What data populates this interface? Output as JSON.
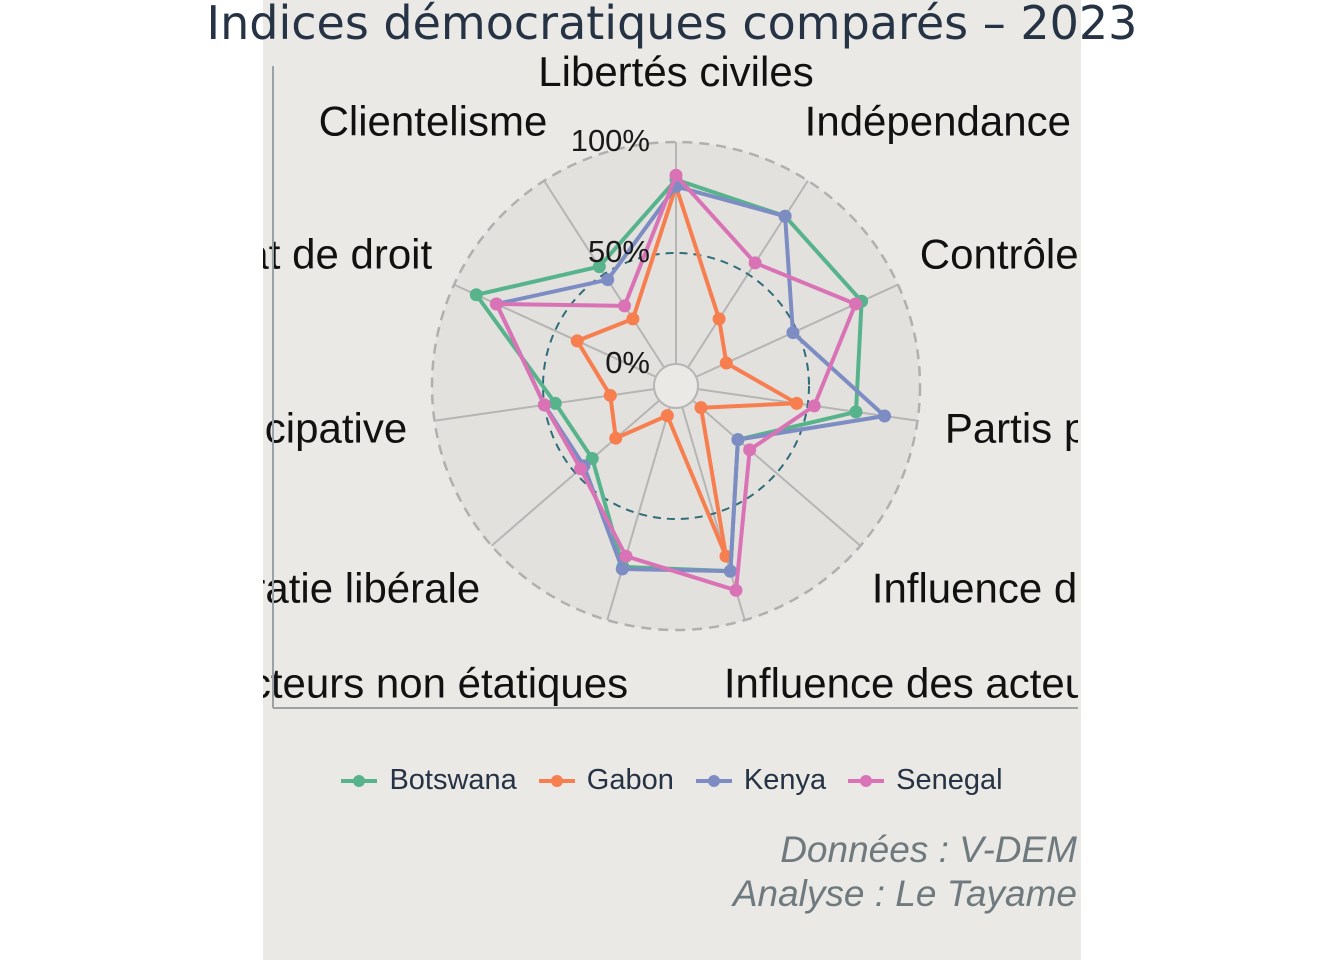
{
  "chart_data": {
    "type": "radar",
    "title": "Indices démocratiques comparés – 2023",
    "axes": [
      "Libertés civiles",
      "Indépendance judiciaire",
      "Contrôle législatif",
      "Partis politiques",
      "Influence du gouvernement",
      "Influence des acteurs étatiques",
      "Influence des acteurs non étatiques",
      "Démocratie libérale",
      "Démocratie participative",
      "État de droit",
      "Clientelisme"
    ],
    "radial_ticks": [
      "0%",
      "50%",
      "100%"
    ],
    "rlim": [
      0,
      100
    ],
    "series": [
      {
        "name": "Botswana",
        "color": "#57b38b",
        "values": [
          83,
          81,
          82,
          72,
          27,
          77,
          75,
          40,
          45,
          89,
          54
        ]
      },
      {
        "name": "Gabon",
        "color": "#f77e4f",
        "values": [
          80,
          26,
          15,
          45,
          5,
          70,
          4,
          26,
          20,
          39,
          26
        ]
      },
      {
        "name": "Kenya",
        "color": "#7d8dc3",
        "values": [
          80,
          81,
          48,
          85,
          27,
          77,
          76,
          45,
          50,
          79,
          47
        ]
      },
      {
        "name": "Senegal",
        "color": "#d973b6",
        "values": [
          85,
          56,
          79,
          53,
          34,
          86,
          70,
          47,
          50,
          79,
          33
        ]
      }
    ],
    "legend_position": "bottom",
    "grid": true
  },
  "caption": {
    "line1": "Données : V-DEM",
    "line2": "Analyse : Le Tayame"
  }
}
